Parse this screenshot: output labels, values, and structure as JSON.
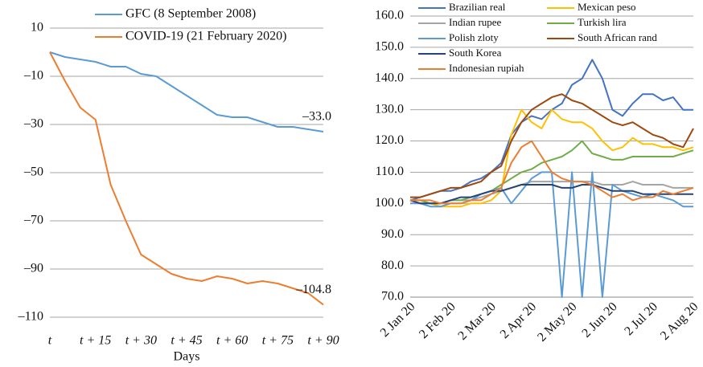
{
  "chart_data": [
    {
      "type": "line",
      "x": [
        0,
        5,
        10,
        15,
        20,
        25,
        30,
        35,
        40,
        45,
        50,
        55,
        60,
        65,
        70,
        75,
        80,
        85,
        90
      ],
      "series": [
        {
          "name": "GFC (8 September 2008)",
          "color": "#5b9bd5",
          "values": [
            0,
            -2,
            -3,
            -4,
            -6,
            -6,
            -9,
            -10,
            -14,
            -18,
            -22,
            -26,
            -27,
            -27,
            -29,
            -31,
            -31,
            -32,
            -33.0
          ]
        },
        {
          "name": "COVID-19 (21 February 2020)",
          "color": "#ed7d31",
          "values": [
            0,
            -12,
            -23,
            -28,
            -55,
            -70,
            -84,
            -88,
            -92,
            -94,
            -95,
            -93,
            -94,
            -96,
            -95,
            -96,
            -98,
            -100,
            -104.8
          ]
        }
      ],
      "xlim": [
        0,
        90
      ],
      "xticks": [
        {
          "value": 0,
          "label": "t"
        },
        {
          "value": 15,
          "label": "t + 15"
        },
        {
          "value": 30,
          "label": "t + 30"
        },
        {
          "value": 45,
          "label": "t + 45"
        },
        {
          "value": 60,
          "label": "t + 60"
        },
        {
          "value": 75,
          "label": "t + 75"
        },
        {
          "value": 90,
          "label": "t + 90"
        }
      ],
      "xlabel": "Days",
      "ylim": [
        -110,
        10
      ],
      "yticks": [
        10,
        {
          "value": -10,
          "label": "–10"
        },
        {
          "value": -30,
          "label": "–30"
        },
        {
          "value": -50,
          "label": "–50"
        },
        {
          "value": -70,
          "label": "–70"
        },
        {
          "value": -90,
          "label": "–90"
        },
        {
          "value": -110,
          "label": "–110"
        }
      ],
      "annotations": [
        {
          "x": 90,
          "y": -33.0,
          "text": "–33.0"
        },
        {
          "x": 90,
          "y": -104.8,
          "text": "–104.8"
        }
      ],
      "grid": true
    },
    {
      "type": "line",
      "categories": [
        "2 Jan 20",
        null,
        null,
        null,
        "2 Feb 20",
        null,
        null,
        null,
        "2 Mar 20",
        null,
        null,
        null,
        "2 Apr 20",
        null,
        null,
        null,
        "2 May 20",
        null,
        null,
        null,
        "2 Jun 20",
        null,
        null,
        null,
        "2 Jul 20",
        null,
        null,
        null,
        "2 Aug 20"
      ],
      "series": [
        {
          "name": "Brazilian real",
          "color": "#4472c4",
          "values": [
            101,
            102,
            103,
            104,
            104,
            105,
            107,
            108,
            110,
            113,
            122,
            126,
            128,
            127,
            130,
            132,
            138,
            140,
            146,
            140,
            130,
            128,
            132,
            135,
            135,
            133,
            134,
            130,
            130
          ]
        },
        {
          "name": "Mexican peso",
          "color": "#ffc000",
          "values": [
            101,
            101,
            100,
            99,
            99,
            99,
            100,
            100,
            101,
            104,
            122,
            130,
            126,
            124,
            130,
            127,
            126,
            126,
            124,
            120,
            117,
            118,
            121,
            119,
            119,
            118,
            118,
            117,
            118
          ]
        },
        {
          "name": "Indian rupee",
          "color": "#a5a5a5",
          "values": [
            101,
            100,
            100,
            100,
            101,
            101,
            101,
            102,
            103,
            104,
            105,
            106,
            107,
            107,
            107,
            107,
            107,
            107,
            107,
            106,
            106,
            106,
            107,
            106,
            106,
            106,
            105,
            105,
            105
          ]
        },
        {
          "name": "Turkish lira",
          "color": "#70ad47",
          "values": [
            101,
            101,
            100,
            100,
            101,
            101,
            102,
            103,
            104,
            106,
            108,
            110,
            111,
            113,
            114,
            115,
            117,
            120,
            116,
            115,
            114,
            114,
            115,
            115,
            115,
            115,
            115,
            116,
            117
          ]
        },
        {
          "name": "Polish zloty",
          "color": "#5b9bd5",
          "values": [
            100,
            100,
            99,
            99,
            100,
            100,
            101,
            103,
            104,
            105,
            100,
            104,
            108,
            110,
            110,
            70,
            110,
            70,
            110,
            70,
            106,
            104,
            103,
            102,
            103,
            102,
            101,
            99,
            99
          ]
        },
        {
          "name": "South African rand",
          "color": "#9e480e",
          "values": [
            102,
            102,
            103,
            104,
            105,
            105,
            106,
            107,
            110,
            112,
            120,
            126,
            130,
            132,
            134,
            135,
            133,
            132,
            130,
            128,
            126,
            125,
            126,
            124,
            122,
            121,
            119,
            118,
            124
          ]
        },
        {
          "name": "South Korea",
          "color": "#264478",
          "values": [
            101,
            100,
            100,
            100,
            101,
            102,
            102,
            103,
            104,
            104,
            105,
            106,
            106,
            106,
            106,
            105,
            105,
            106,
            106,
            105,
            104,
            104,
            104,
            103,
            103,
            103,
            103,
            103,
            103
          ]
        },
        {
          "name": "Indonesian rupiah",
          "color": "#ed7d31",
          "values": [
            101,
            101,
            101,
            100,
            100,
            100,
            101,
            101,
            103,
            105,
            113,
            118,
            120,
            115,
            110,
            108,
            107,
            107,
            106,
            104,
            102,
            103,
            101,
            102,
            102,
            104,
            103,
            104,
            105
          ]
        }
      ],
      "ylim": [
        70,
        160
      ],
      "yticks": [
        {
          "value": 70,
          "label": "70.0"
        },
        {
          "value": 80,
          "label": "80.0"
        },
        {
          "value": 90,
          "label": "90.0"
        },
        {
          "value": 100,
          "label": "100.0"
        },
        {
          "value": 110,
          "label": "110.0"
        },
        {
          "value": 120,
          "label": "120.0"
        },
        {
          "value": 130,
          "label": "130.0"
        },
        {
          "value": 140,
          "label": "140.0"
        },
        {
          "value": 150,
          "label": "150.0"
        },
        {
          "value": 160,
          "label": "160.0"
        }
      ],
      "grid": true
    }
  ]
}
